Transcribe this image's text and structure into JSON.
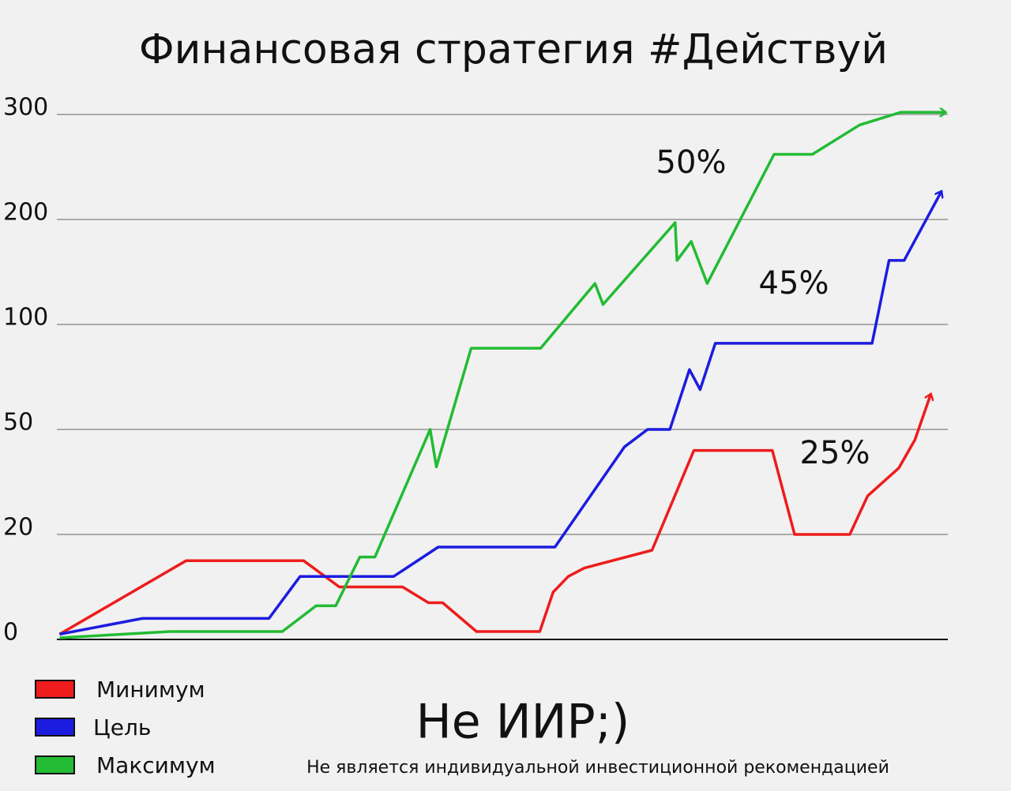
{
  "chart_data": {
    "type": "line",
    "title": "Финансовая стратегия #Действуй",
    "subtitle": "Не ИИР;)",
    "footnote": "Не является индивидуальной инвестиционной рекомендацией",
    "y_scale": "tick-spaced",
    "ylim": [
      0,
      300
    ],
    "yticks": [
      0,
      20,
      50,
      100,
      200,
      300
    ],
    "xlim": [
      0,
      100
    ],
    "grid": true,
    "legend": "bottom-left",
    "annotations": [
      "50%",
      "45%",
      "25%"
    ],
    "series": [
      {
        "name": "Минимум",
        "color": "#ee1c1c",
        "x": [
          0.3,
          14.5,
          27.7,
          31.7,
          38.8,
          41.7,
          43.3,
          47.1,
          54.2,
          55.7,
          57.4,
          59.2,
          66.8,
          71.5,
          80.3,
          82.8,
          89,
          91,
          94.5,
          96.3,
          98.1
        ],
        "values": [
          1,
          15,
          15,
          10,
          10,
          7,
          7,
          1.5,
          1.5,
          9,
          12,
          13.6,
          17,
          44,
          44,
          20,
          20,
          31,
          39,
          47,
          67
        ]
      },
      {
        "name": "Цель",
        "color": "#1c1ce0",
        "x": [
          0.3,
          9.6,
          23.8,
          27.3,
          37.8,
          42.8,
          55.9,
          63.7,
          66.3,
          68.8,
          71,
          72.2,
          73.9,
          91.5,
          93.4,
          95.1,
          99.3
        ],
        "values": [
          1,
          4,
          4,
          12,
          12,
          17.6,
          17.6,
          45,
          50,
          50,
          78.5,
          69,
          91,
          91,
          161,
          161,
          227
        ]
      },
      {
        "name": "Максимум",
        "color": "#22bb33",
        "x": [
          0.3,
          12.7,
          25.3,
          29.1,
          31.3,
          34,
          35.7,
          41.9,
          42.6,
          46.5,
          54.3,
          60.4,
          61.3,
          69.4,
          69.6,
          71.2,
          73,
          80.5,
          84.8,
          90.1,
          94.7,
          99.8
        ],
        "values": [
          0.3,
          1.5,
          1.5,
          6.4,
          6.4,
          15.7,
          15.7,
          50,
          39.3,
          88.7,
          88.7,
          139,
          119,
          197,
          161,
          179,
          139,
          262,
          262,
          290,
          302,
          302
        ]
      }
    ]
  }
}
